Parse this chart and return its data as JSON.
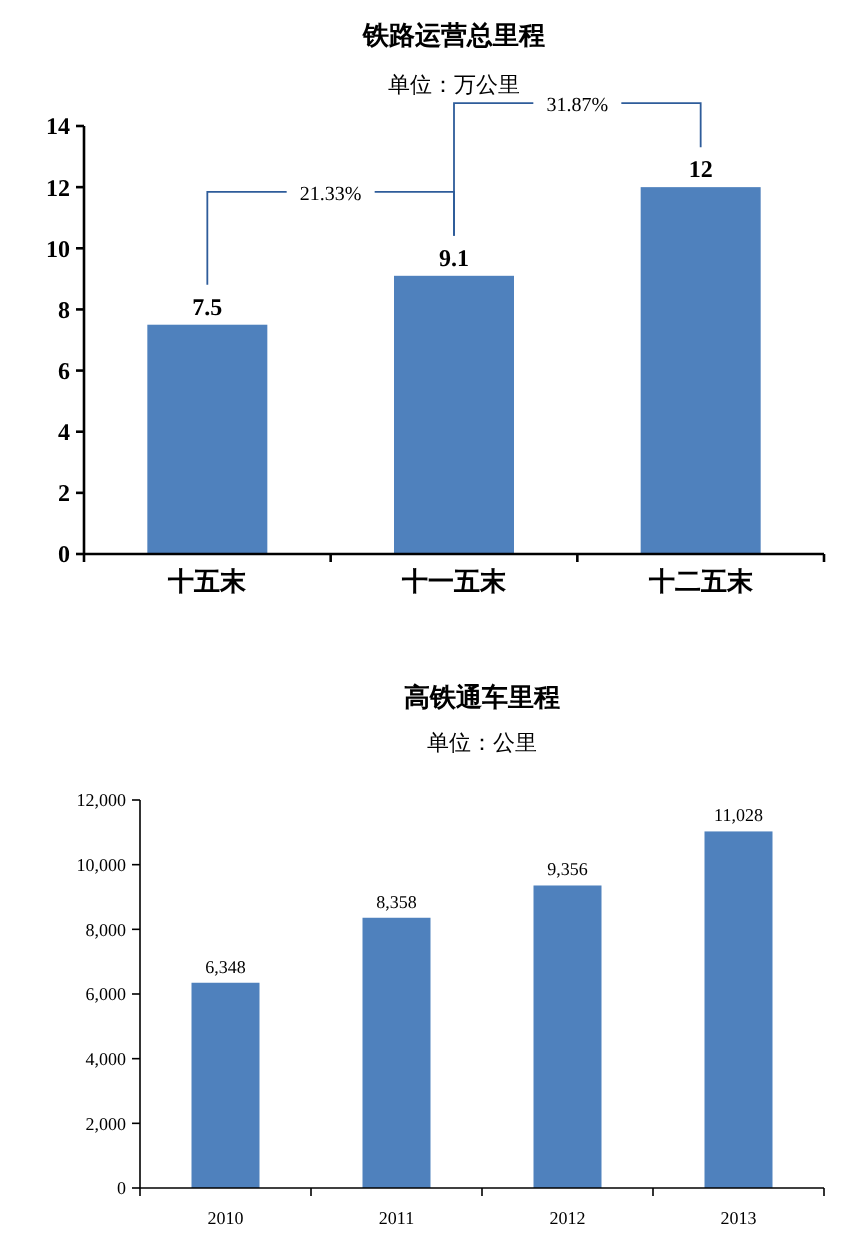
{
  "chart_data": [
    {
      "type": "bar",
      "title": "铁路运营总里程",
      "subtitle": "单位：万公里",
      "categories": [
        "十五末",
        "十一五末",
        "十二五末"
      ],
      "values": [
        7.5,
        9.1,
        12
      ],
      "color": "#4f81bd",
      "ylim": [
        0,
        14
      ],
      "yticks": [
        0,
        2,
        4,
        6,
        8,
        10,
        12,
        14
      ],
      "data_labels": true,
      "annotations": [
        "21.33%",
        "31.87%"
      ]
    },
    {
      "type": "bar",
      "title": "高铁通车里程",
      "subtitle": "单位：公里",
      "categories": [
        "2010",
        "2011",
        "2012",
        "2013"
      ],
      "values": [
        6348,
        8358,
        9356,
        11028
      ],
      "value_labels": [
        "6,348",
        "8,358",
        "9,356",
        "11,028"
      ],
      "color": "#4f81bd",
      "ylim": [
        0,
        12000
      ],
      "yticks": [
        {
          "value": 0,
          "label": "0"
        },
        {
          "value": 2000,
          "label": "2,000"
        },
        {
          "value": 4000,
          "label": "4,000"
        },
        {
          "value": 6000,
          "label": "6,000"
        },
        {
          "value": 8000,
          "label": "8,000"
        },
        {
          "value": 10000,
          "label": "10,000"
        },
        {
          "value": 12000,
          "label": "12,000"
        }
      ]
    }
  ]
}
